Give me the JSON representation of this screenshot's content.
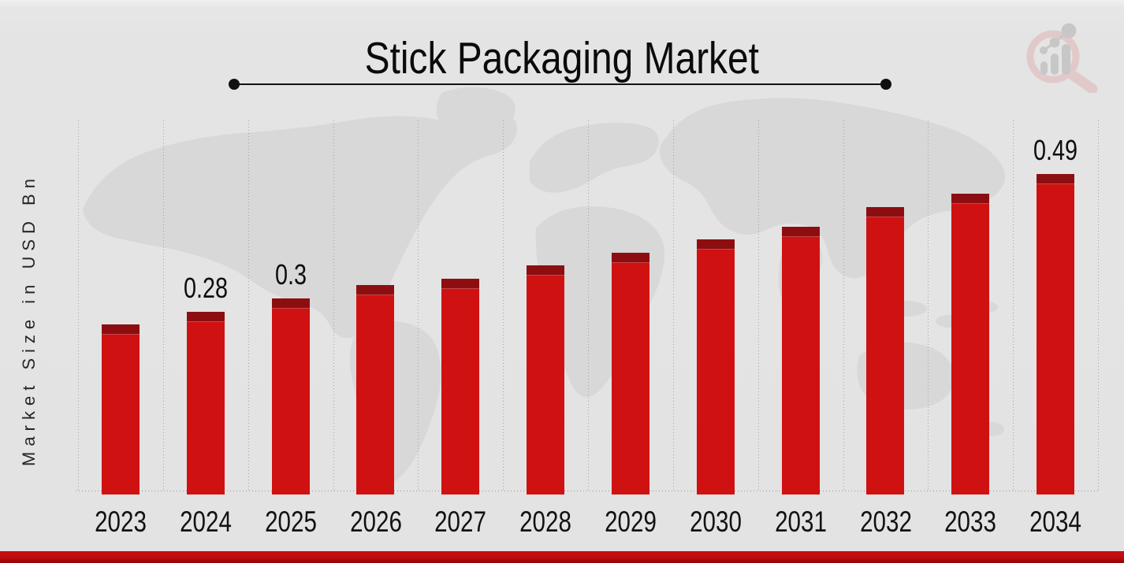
{
  "header": {
    "title": "Stick Packaging Market"
  },
  "brand": {
    "logo_icon": "magnifier-growth-chart-logo"
  },
  "chart_data": {
    "type": "bar",
    "title": "Stick Packaging Market",
    "ylabel": "Market Size in USD Bn",
    "xlabel": "",
    "unit": "USD Bn",
    "categories": [
      "2023",
      "2024",
      "2025",
      "2026",
      "2027",
      "2028",
      "2029",
      "2030",
      "2031",
      "2032",
      "2033",
      "2034"
    ],
    "values": [
      0.26,
      0.28,
      0.3,
      0.32,
      0.33,
      0.35,
      0.37,
      0.39,
      0.41,
      0.44,
      0.46,
      0.49
    ],
    "data_labels": [
      "",
      "0.28",
      "0.3",
      "",
      "",
      "",
      "",
      "",
      "",
      "",
      "",
      "0.49"
    ],
    "ylim": [
      0,
      0.55
    ],
    "grid": "vertical-dotted",
    "legend": "none",
    "bar_color": "#d01112",
    "bar_cap_color": "#8d0e11",
    "accent_bar_color": "#c40d0e",
    "background_color": "#e4e4e4"
  }
}
